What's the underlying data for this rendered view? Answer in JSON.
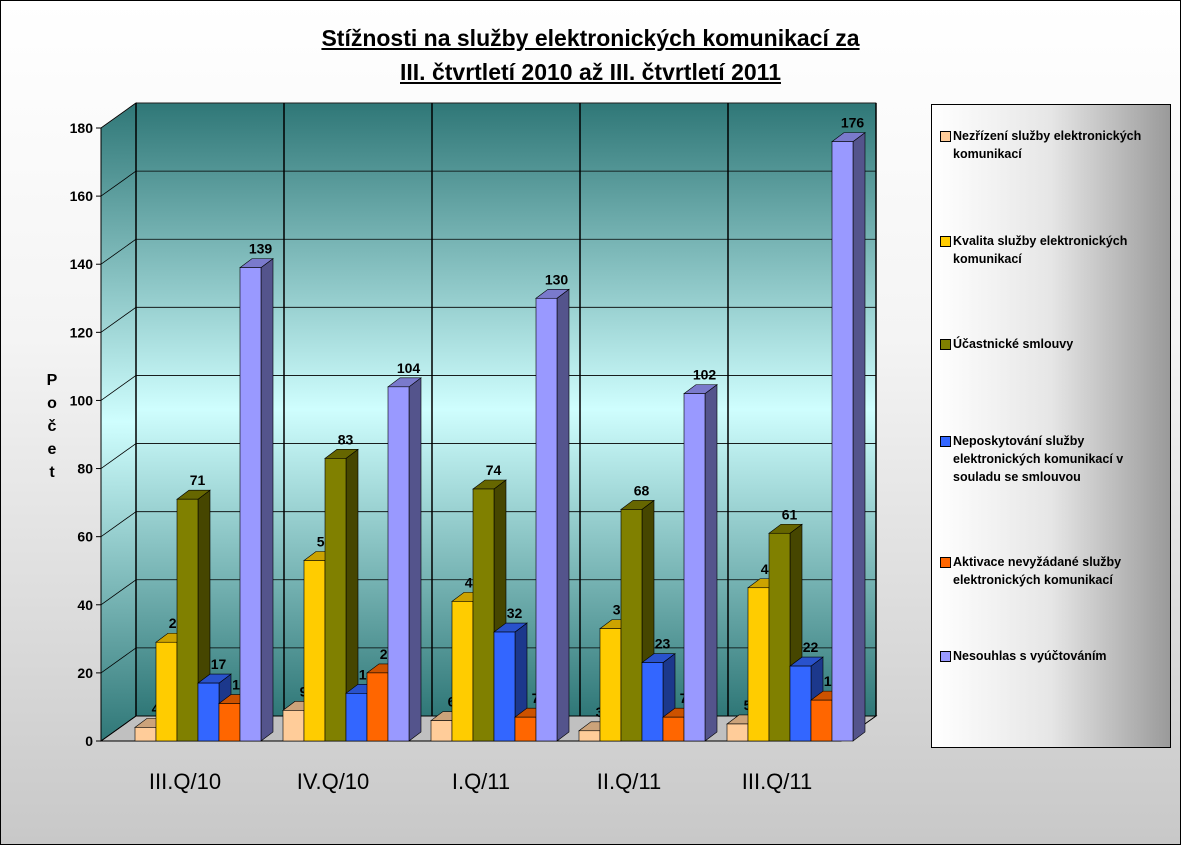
{
  "chart_data": {
    "type": "bar3d",
    "title": [
      "Stížnosti na služby elektronických komunikací za",
      "III. čtvrtletí 2010 až III. čtvrtletí 2011"
    ],
    "y_label": "Počet",
    "categories": [
      "III.Q/10",
      "IV.Q/10",
      "I.Q/11",
      "II.Q/11",
      "III.Q/11"
    ],
    "series": [
      {
        "name": "Nezřízení služby elektronických komunikací",
        "color": "#ffcc99",
        "values": [
          4,
          9,
          6,
          3,
          5
        ]
      },
      {
        "name": "Kvalita služby elektronických komunikací",
        "color": "#ffcc00",
        "values": [
          29,
          53,
          41,
          33,
          45
        ]
      },
      {
        "name": "Účastnické smlouvy",
        "color": "#808000",
        "values": [
          71,
          83,
          74,
          68,
          61
        ]
      },
      {
        "name": "Neposkytování služby elektronických komunikací v souladu se smlouvou",
        "color": "#3366ff",
        "values": [
          17,
          14,
          32,
          23,
          22
        ]
      },
      {
        "name": "Aktivace nevyžádané služby elektronických komunikací",
        "color": "#ff6600",
        "values": [
          11,
          20,
          7,
          7,
          12
        ]
      },
      {
        "name": "Nesouhlas s vyúčtováním",
        "color": "#9999ff",
        "values": [
          139,
          104,
          130,
          102,
          176
        ]
      }
    ],
    "ylim": [
      0,
      180
    ],
    "yticks": [
      0,
      20,
      40,
      60,
      80,
      100,
      120,
      140,
      160,
      180
    ],
    "grid": true,
    "legend": "right"
  }
}
